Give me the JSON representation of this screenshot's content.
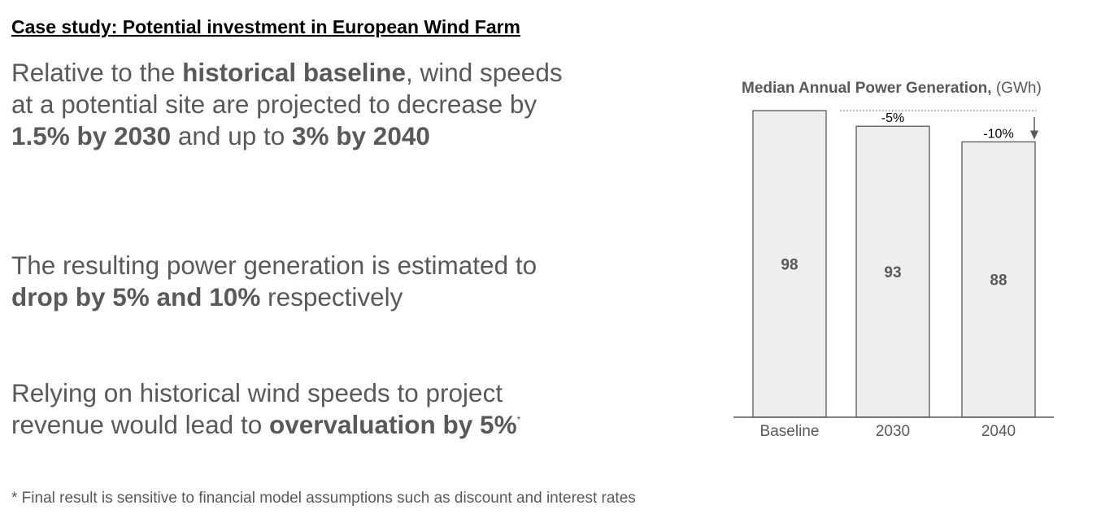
{
  "slide": {
    "title": "Case study: Potential investment in European Wind Farm",
    "p1": {
      "t1": "Relative to the ",
      "b1": "historical baseline",
      "t2": ", wind speeds at a potential site are projected to decrease by ",
      "b2": "1.5% by 2030",
      "t3": " and up to ",
      "b3": "3% by 2040"
    },
    "p2": {
      "t1": "The resulting power generation is estimated to ",
      "b1": "drop by 5% and 10%",
      "t2": " respectively"
    },
    "p3": {
      "t1": "Relying on historical wind speeds to project revenue would lead to ",
      "b1": "overvaluation by 5%",
      "sup": "*"
    },
    "footnote": "* Final result is sensitive to financial model assumptions such as discount and interest rates"
  },
  "chart_data": {
    "type": "bar",
    "title_bold": "Median Annual Power Generation,",
    "title_unit": " (GWh)",
    "categories": [
      "Baseline",
      "2030",
      "2040"
    ],
    "values": [
      98,
      93,
      88
    ],
    "value_labels": [
      "98",
      "93",
      "88"
    ],
    "change_labels": [
      "",
      "-5%",
      "-10%"
    ],
    "ylim": [
      0,
      98
    ],
    "bar_fill": "#eeeeee",
    "bar_stroke": "#595959",
    "text_color": "#595959"
  }
}
